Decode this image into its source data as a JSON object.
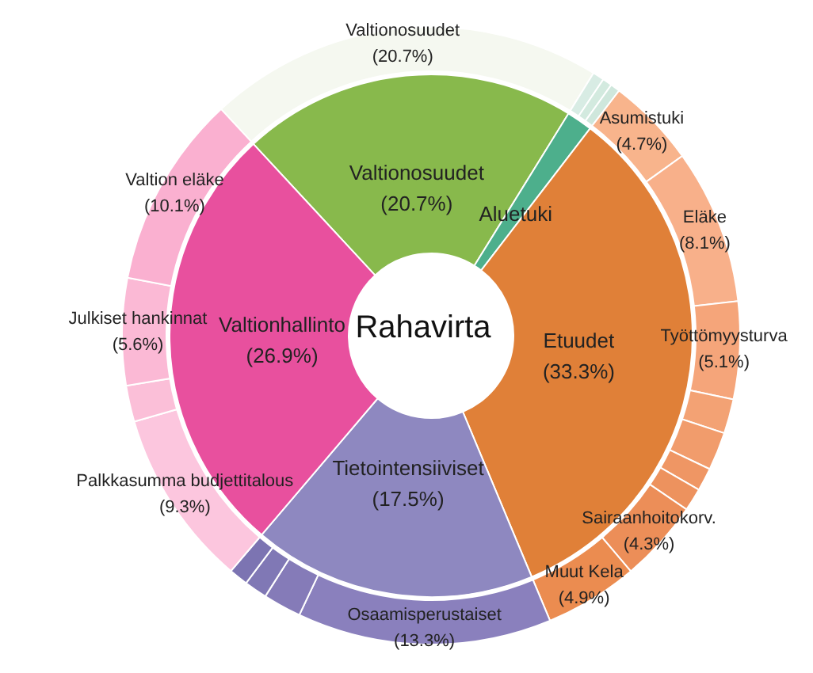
{
  "chart_data": [
    {
      "type": "donut",
      "title": "Rahavirta",
      "categories": [
        "Valtionosuudet",
        "Aluetuki",
        "Etuudet",
        "Tietointensiiviset",
        "Valtionhallinto"
      ],
      "values": [
        20.7,
        1.6,
        33.3,
        17.5,
        26.9
      ],
      "colors": [
        "#88b94c",
        "#4daf8c",
        "#e08038",
        "#8e88c0",
        "#e8509e"
      ],
      "value_labels": [
        "(20.7%)",
        null,
        "(33.3%)",
        "(17.5%)",
        "(26.9%)"
      ]
    },
    {
      "type": "donut",
      "categories": [
        "Valtionosuudet",
        null,
        null,
        null,
        "Asumistuki",
        "Eläke",
        "Työttömyysturva",
        null,
        null,
        null,
        null,
        "Sairaanhoitokorv.",
        "Muut Kela",
        "Osaamisperustaiset",
        null,
        null,
        null,
        "Palkkasumma budjettitalous",
        null,
        "Julkiset hankinnat",
        "Valtion eläke"
      ],
      "values": [
        20.7,
        0.6,
        0.5,
        0.5,
        4.7,
        8.1,
        5.1,
        1.8,
        2.0,
        1.2,
        1.2,
        4.3,
        4.9,
        13.3,
        2.0,
        1.2,
        1.0,
        9.3,
        1.9,
        5.6,
        10.1
      ],
      "colors": [
        "#f5f8f0",
        "#d8ece4",
        "#d3eadf",
        "#cfe7dc",
        "#f8b48c",
        "#f8b08a",
        "#f5a57a",
        "#f3a274",
        "#f19c6c",
        "#ef9664",
        "#ed925e",
        "#ec8e58",
        "#eb8c50",
        "#8a80bd",
        "#857bb8",
        "#8078b5",
        "#7c74b2",
        "#fcc6de",
        "#fbbfd8",
        "#fbb9d5",
        "#fab0d0"
      ],
      "value_labels": [
        "(20.7%)",
        null,
        null,
        null,
        "(4.7%)",
        "(8.1%)",
        "(5.1%)",
        null,
        null,
        null,
        null,
        "(4.3%)",
        "(4.9%)",
        "(13.3%)",
        null,
        null,
        null,
        "(9.3%)",
        null,
        "(5.6%)",
        "(10.1%)"
      ]
    }
  ]
}
